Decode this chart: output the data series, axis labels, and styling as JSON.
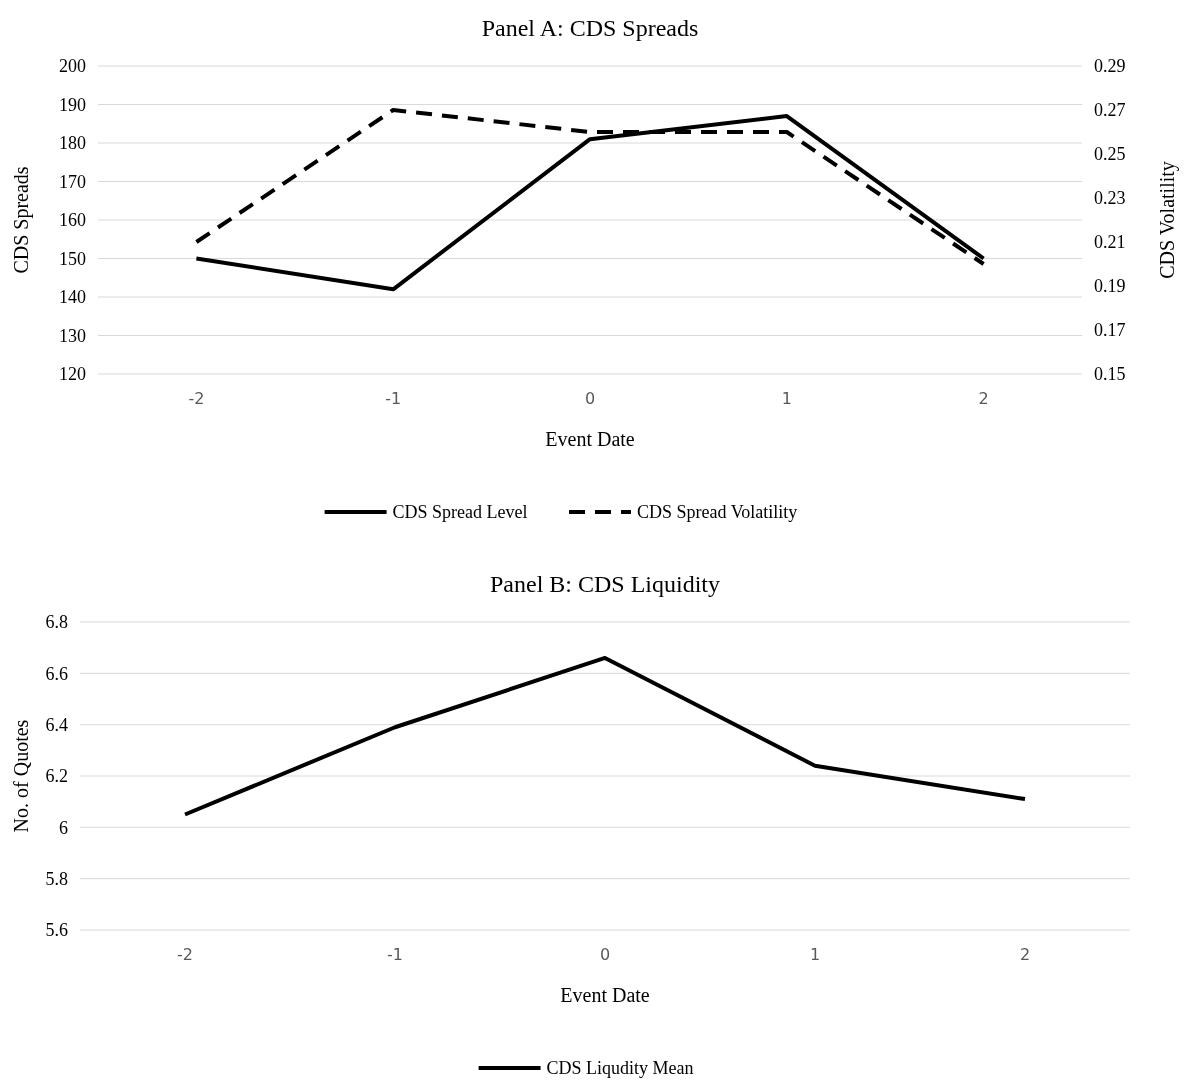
{
  "chart_data": [
    {
      "type": "line",
      "title": "Panel A: CDS Spreads",
      "xlabel": "Event Date",
      "ylabel": "CDS Spreads",
      "y2label": "CDS Volatility",
      "categories": [
        "-2",
        "-1",
        "0",
        "1",
        "2"
      ],
      "series": [
        {
          "name": "CDS Spread Level",
          "color": "#000000",
          "values": [
            150,
            142,
            181,
            187,
            150
          ]
        },
        {
          "name": "CDS Spread Volatility",
          "color": "#000000",
          "values": [
            0.21,
            0.27,
            0.26,
            0.26,
            0.2
          ],
          "axis": "y2",
          "line_style": "dashed"
        }
      ],
      "ylim": [
        120,
        200
      ],
      "yticks": [
        120,
        130,
        140,
        150,
        160,
        170,
        180,
        190,
        200
      ],
      "y2lim": [
        0.15,
        0.29
      ],
      "y2ticks": [
        0.15,
        0.17,
        0.19,
        0.21,
        0.23,
        0.25,
        0.27,
        0.29
      ],
      "grid": "y",
      "legend": "bottom"
    },
    {
      "type": "line",
      "title": "Panel B: CDS Liquidity",
      "xlabel": "Event Date",
      "ylabel": "No. of Quotes",
      "categories": [
        "-2",
        "-1",
        "0",
        "1",
        "2"
      ],
      "series": [
        {
          "name": "CDS Liqudity Mean",
          "color": "#000000",
          "values": [
            6.05,
            6.39,
            6.66,
            6.24,
            6.11
          ]
        }
      ],
      "ylim": [
        5.6,
        6.8
      ],
      "yticks": [
        5.6,
        5.8,
        6,
        6.2,
        6.4,
        6.6,
        6.8
      ],
      "grid": "y",
      "legend": "bottom"
    }
  ]
}
